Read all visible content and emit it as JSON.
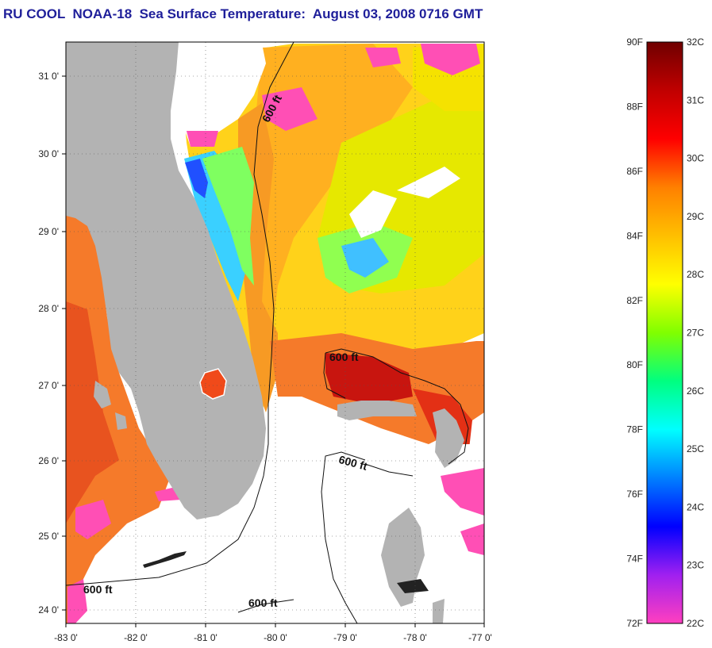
{
  "title": "RU COOL  NOAA-18  Sea Surface Temperature:  August 03, 2008 0716 GMT",
  "longitude_ticks": [
    "-83 0'",
    "-82 0'",
    "-81 0'",
    "-80 0'",
    "-79 0'",
    "-78 0'",
    "-77 0'"
  ],
  "latitude_ticks": [
    "31 0'",
    "30 0'",
    "29 0'",
    "28 0'",
    "27 0'",
    "26 0'",
    "25 0'",
    "24 0'"
  ],
  "contour_labels": [
    "600 ft",
    "600 ft",
    "600 ft",
    "600 ft",
    "600 ft"
  ],
  "colorbar": {
    "fahrenheit": [
      "90F",
      "88F",
      "86F",
      "84F",
      "82F",
      "80F",
      "78F",
      "76F",
      "74F",
      "72F"
    ],
    "celsius": [
      "32C",
      "31C",
      "30C",
      "29C",
      "28C",
      "27C",
      "26C",
      "25C",
      "24C",
      "23C",
      "22C"
    ],
    "colors": [
      "#ff3fbf",
      "#a020f0",
      "#0000ff",
      "#0080ff",
      "#00ffff",
      "#00ff80",
      "#80ff00",
      "#ffff00",
      "#ffbf00",
      "#ff8000",
      "#ff0000",
      "#c00000",
      "#700000"
    ]
  },
  "colors": {
    "land": "#b3b3b3",
    "title": "#1f1f9a",
    "warm_sea": "#f57a2a",
    "hot_sea": "#c8150f",
    "gulfstream": "#ffb020",
    "cool_sea": "#e6e800",
    "cloud": "#ffffff",
    "pink": "#ff4fb5"
  }
}
